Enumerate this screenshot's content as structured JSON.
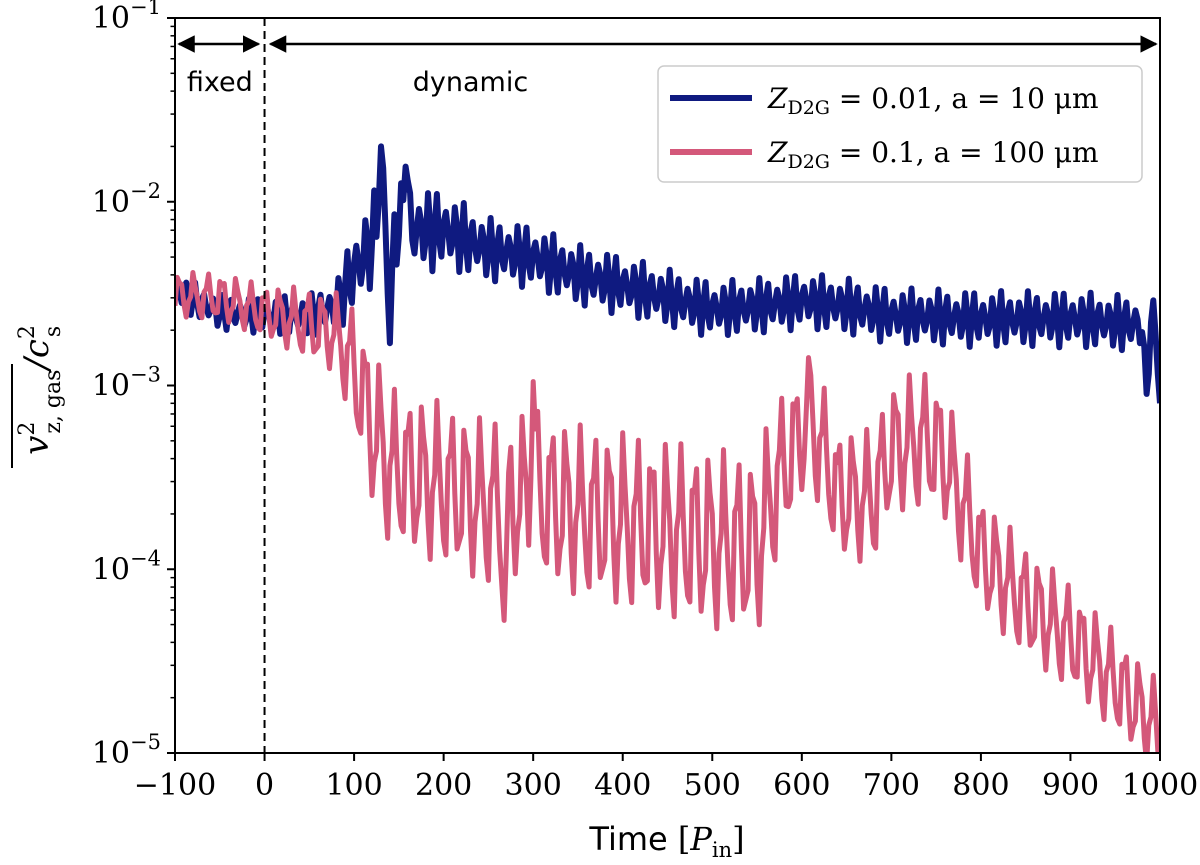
{
  "chart_data": {
    "type": "line",
    "xlabel": "Time",
    "xlabel_unit": "P",
    "xlabel_unit_sub": "in",
    "ylabel": "v_z,gas^2 / c_s^2",
    "ylabel_main": "v",
    "ylabel_sup": "2",
    "ylabel_sub": "z, gas",
    "ylabel_slash": "/c",
    "ylabel_sup2": "2",
    "ylabel_sub2": "s",
    "xlim": [
      -100,
      1000
    ],
    "ylim": [
      1e-05,
      0.1
    ],
    "yscale": "log",
    "xticks": [
      {
        "value": -100,
        "label": "−100"
      },
      {
        "value": 0,
        "label": "0"
      },
      {
        "value": 100,
        "label": "100"
      },
      {
        "value": 200,
        "label": "200"
      },
      {
        "value": 300,
        "label": "300"
      },
      {
        "value": 400,
        "label": "400"
      },
      {
        "value": 500,
        "label": "500"
      },
      {
        "value": 600,
        "label": "600"
      },
      {
        "value": 700,
        "label": "700"
      },
      {
        "value": 800,
        "label": "800"
      },
      {
        "value": 900,
        "label": "900"
      },
      {
        "value": 1000,
        "label": "1000"
      }
    ],
    "yticks": [
      {
        "exp": -5,
        "base": "10",
        "sup": "−5"
      },
      {
        "exp": -4,
        "base": "10",
        "sup": "−4"
      },
      {
        "exp": -3,
        "base": "10",
        "sup": "−3"
      },
      {
        "exp": -2,
        "base": "10",
        "sup": "−2"
      },
      {
        "exp": -1,
        "base": "10",
        "sup": "−1"
      }
    ],
    "vline_x": 0,
    "annotations": {
      "fixed": {
        "label": "fixed",
        "from": -100,
        "to": 0
      },
      "dynamic": {
        "label": "dynamic",
        "from": 0,
        "to": 1000
      }
    },
    "legend_position": "top-right",
    "series": [
      {
        "name": "Z_D2G = 0.01, a = 10 μm",
        "legend_prefix": "Z",
        "legend_sub": "D2G",
        "legend_text": " = 0.01, a = 10 μm",
        "color": "#0f1a80",
        "oscillation_period": 10,
        "envelope": [
          [
            -100,
            0.0033
          ],
          [
            -50,
            0.0025
          ],
          [
            0,
            0.0024
          ],
          [
            50,
            0.0024
          ],
          [
            80,
            0.0027
          ],
          [
            100,
            0.0042
          ],
          [
            120,
            0.006
          ],
          [
            130,
            0.0085
          ],
          [
            140,
            0.0075
          ],
          [
            160,
            0.007
          ],
          [
            200,
            0.007
          ],
          [
            250,
            0.0055
          ],
          [
            300,
            0.005
          ],
          [
            350,
            0.004
          ],
          [
            400,
            0.0035
          ],
          [
            450,
            0.003
          ],
          [
            500,
            0.0026
          ],
          [
            550,
            0.0027
          ],
          [
            600,
            0.0029
          ],
          [
            650,
            0.0027
          ],
          [
            700,
            0.0024
          ],
          [
            800,
            0.0023
          ],
          [
            900,
            0.0023
          ],
          [
            1000,
            0.0021
          ]
        ],
        "amplitude": [
          [
            -100,
            1.18
          ],
          [
            0,
            1.18
          ],
          [
            80,
            1.25
          ],
          [
            100,
            1.5
          ],
          [
            140,
            1.55
          ],
          [
            250,
            1.35
          ],
          [
            500,
            1.3
          ],
          [
            1000,
            1.3
          ]
        ],
        "spikes": [
          {
            "x": 130,
            "y": 0.02
          },
          {
            "x": 158,
            "y": 0.018
          },
          {
            "x": 140,
            "y": 0.0017
          },
          {
            "x": 985,
            "y": 0.0009
          },
          {
            "x": 1000,
            "y": 0.0008
          }
        ]
      },
      {
        "name": "Z_D2G = 0.1, a = 100 μm",
        "legend_prefix": "Z",
        "legend_sub": "D2G",
        "legend_text": " = 0.1, a = 100 μm",
        "color": "#d4587a",
        "oscillation_period": 16,
        "envelope": [
          [
            -100,
            0.0031
          ],
          [
            -50,
            0.003
          ],
          [
            0,
            0.0025
          ],
          [
            40,
            0.0022
          ],
          [
            80,
            0.0019
          ],
          [
            100,
            0.0012
          ],
          [
            120,
            0.0006
          ],
          [
            140,
            0.00035
          ],
          [
            200,
            0.00028
          ],
          [
            250,
            0.00022
          ],
          [
            300,
            0.00025
          ],
          [
            350,
            0.0002
          ],
          [
            400,
            0.00018
          ],
          [
            450,
            0.00016
          ],
          [
            500,
            0.00014
          ],
          [
            550,
            0.00013
          ],
          [
            570,
            0.00028
          ],
          [
            600,
            0.00055
          ],
          [
            620,
            0.0005
          ],
          [
            640,
            0.00025
          ],
          [
            680,
            0.00024
          ],
          [
            700,
            0.00045
          ],
          [
            740,
            0.0005
          ],
          [
            760,
            0.0004
          ],
          [
            780,
            0.00022
          ],
          [
            800,
            0.00012
          ],
          [
            850,
            6.5e-05
          ],
          [
            900,
            4.2e-05
          ],
          [
            950,
            2.4e-05
          ],
          [
            1000,
            1.3e-05
          ]
        ],
        "amplitude": [
          [
            -100,
            1.25
          ],
          [
            0,
            1.3
          ],
          [
            80,
            1.5
          ],
          [
            120,
            2.2
          ],
          [
            550,
            2.5
          ],
          [
            600,
            1.9
          ],
          [
            750,
            2.0
          ],
          [
            800,
            1.8
          ],
          [
            1000,
            1.6
          ]
        ],
        "spikes": [
          {
            "x": 268,
            "y": 4.8e-05
          },
          {
            "x": 300,
            "y": 0.00105
          },
          {
            "x": 608,
            "y": 0.00145
          },
          {
            "x": 1000,
            "y": 9e-06
          }
        ]
      }
    ]
  }
}
